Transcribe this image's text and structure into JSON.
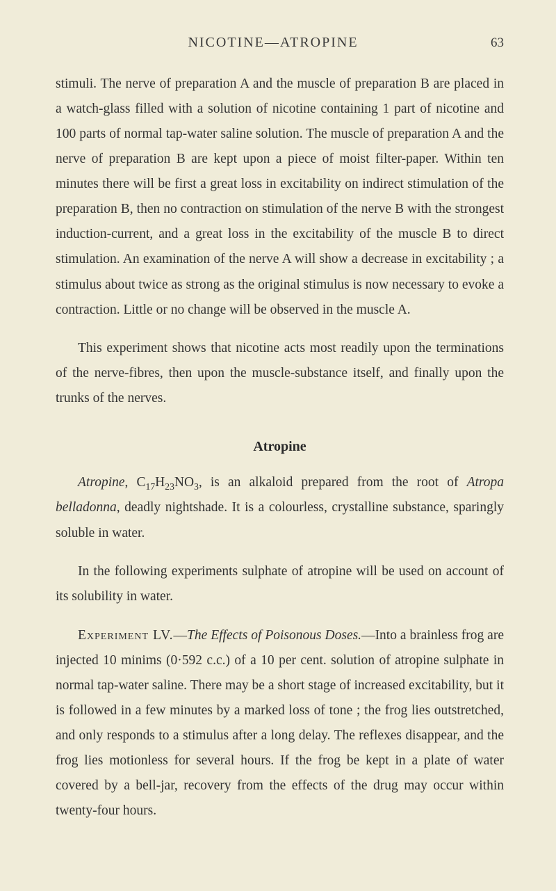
{
  "header": {
    "title": "NICOTINE—ATROPINE",
    "page_number": "63"
  },
  "paragraphs": {
    "p1": "stimuli. The nerve of preparation A and the muscle of preparation B are placed in a watch-glass filled with a solution of nicotine containing 1 part of nicotine and 100 parts of normal tap-water saline solution. The muscle of preparation A and the nerve of preparation B are kept upon a piece of moist filter-paper. Within ten minutes there will be first a great loss in excitability on indirect stimulation of the preparation B, then no contraction on stimulation of the nerve B with the strongest induction-current, and a great loss in the excitability of the muscle B to direct stimulation. An examination of the nerve A will show a decrease in excitability ; a stimulus about twice as strong as the original stimulus is now necessary to evoke a contraction. Little or no change will be observed in the muscle A.",
    "p2": "This experiment shows that nicotine acts most readily upon the terminations of the nerve-fibres, then upon the muscle-substance itself, and finally upon the trunks of the nerves.",
    "section_title": "Atropine",
    "p3_italic1": "Atropine",
    "p3_text1": ", C",
    "p3_sub1": "17",
    "p3_text2": "H",
    "p3_sub2": "23",
    "p3_text3": "NO",
    "p3_sub3": "3",
    "p3_text4": ", is an alkaloid prepared from the root of ",
    "p3_italic2": "Atropa belladonna",
    "p3_text5": ", deadly nightshade. It is a colourless, crystalline substance, sparingly soluble in water.",
    "p4": "In the following experiments sulphate of atropine will be used on account of its solubility in water.",
    "p5_smallcaps": "Experiment LV.",
    "p5_text1": "—",
    "p5_italic": "The Effects of Poisonous Doses.",
    "p5_text2": "—Into a brainless frog are injected 10 minims (0·592 c.c.) of a 10 per cent. solution of atropine sulphate in normal tap-water saline. There may be a short stage of increased excitability, but it is followed in a few minutes by a marked loss of tone ; the frog lies outstretched, and only responds to a stimulus after a long delay. The reflexes disappear, and the frog lies motionless for several hours. If the frog be kept in a plate of water covered by a bell-jar, recovery from the effects of the drug may occur within twenty-four hours."
  },
  "colors": {
    "background": "#f0ecd9",
    "text": "#333333",
    "header_text": "#3a3a3a"
  }
}
